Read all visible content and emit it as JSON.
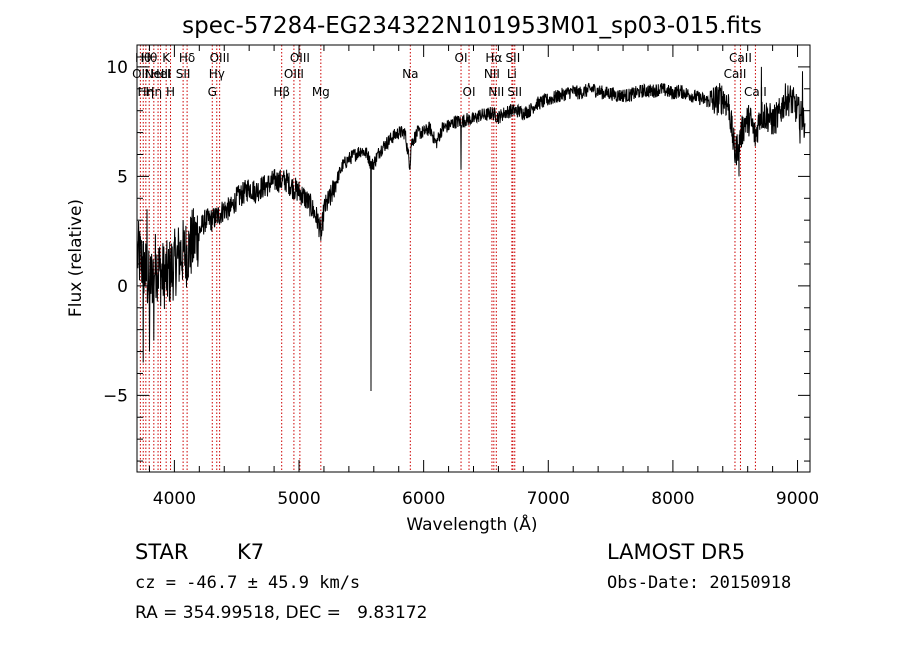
{
  "chart_data": {
    "type": "line",
    "title": "spec-57284-EG234322N101953M01_sp03-015.fits",
    "xlabel": "Wavelength (Å)",
    "ylabel": "Flux (relative)",
    "xlim": [
      3700,
      9100
    ],
    "ylim": [
      -8.5,
      11.0
    ],
    "xticks": [
      4000,
      5000,
      6000,
      7000,
      8000,
      9000
    ],
    "yticks": [
      -5,
      0,
      5,
      10
    ],
    "line_color": "#000000",
    "reference_line_color": "#cc0000",
    "series": [
      {
        "x": [
          3700,
          3750,
          3800,
          3850,
          3900,
          3950,
          4000,
          4050,
          4100,
          4150,
          4200,
          4250,
          4300,
          4350,
          4400,
          4450,
          4500,
          4550,
          4600,
          4650,
          4700,
          4750,
          4800,
          4850,
          4900,
          4950,
          5000,
          5050,
          5100,
          5150,
          5180,
          5200,
          5250,
          5300,
          5350,
          5400,
          5450,
          5500,
          5550,
          5580,
          5600,
          5650,
          5700,
          5750,
          5800,
          5850,
          5890,
          5900,
          5950,
          6000,
          6050,
          6100,
          6150,
          6200,
          6250,
          6300,
          6350,
          6400,
          6450,
          6500,
          6550,
          6600,
          6650,
          6700,
          6750,
          6800,
          6850,
          6900,
          6950,
          7000,
          7050,
          7100,
          7150,
          7200,
          7250,
          7300,
          7350,
          7400,
          7450,
          7500,
          7550,
          7600,
          7650,
          7700,
          7750,
          7800,
          7850,
          7900,
          7950,
          8000,
          8050,
          8100,
          8150,
          8200,
          8250,
          8300,
          8350,
          8400,
          8450,
          8498,
          8542,
          8580,
          8620,
          8662,
          8700,
          8750,
          8800,
          8850,
          8900,
          8950,
          9000,
          9050
        ],
        "y": [
          1.5,
          1.0,
          0.0,
          1.0,
          0.5,
          0.5,
          1.0,
          1.5,
          1.5,
          2.0,
          2.5,
          3.0,
          3.0,
          3.2,
          3.5,
          3.5,
          4.0,
          4.2,
          4.5,
          4.3,
          4.5,
          4.6,
          4.8,
          4.8,
          4.8,
          4.5,
          4.3,
          4.0,
          3.6,
          3.0,
          2.3,
          3.5,
          4.0,
          4.8,
          5.5,
          5.8,
          6.0,
          6.2,
          6.0,
          5.5,
          5.6,
          6.2,
          6.5,
          6.8,
          7.0,
          7.0,
          5.5,
          6.5,
          7.0,
          7.0,
          7.2,
          6.5,
          7.2,
          7.3,
          7.5,
          7.5,
          7.6,
          7.6,
          7.8,
          7.8,
          7.9,
          7.7,
          7.9,
          8.0,
          8.0,
          7.9,
          8.0,
          8.3,
          8.4,
          8.5,
          8.6,
          8.7,
          8.8,
          8.9,
          8.8,
          8.9,
          9.0,
          8.9,
          8.8,
          8.8,
          8.7,
          8.7,
          8.7,
          8.8,
          8.9,
          8.9,
          8.9,
          9.0,
          8.9,
          8.8,
          8.9,
          8.8,
          8.7,
          8.6,
          8.5,
          8.4,
          8.5,
          8.6,
          8.2,
          6.0,
          6.8,
          7.5,
          7.6,
          6.8,
          7.8,
          7.8,
          7.5,
          7.8,
          8.5,
          8.5,
          8.0,
          7.5
        ],
        "spikes": [
          {
            "x": 3750,
            "y": -3.5
          },
          {
            "x": 3780,
            "y": 3.5
          },
          {
            "x": 3800,
            "y": -3.0
          },
          {
            "x": 3835,
            "y": -2.5
          },
          {
            "x": 5577,
            "y": -4.8
          },
          {
            "x": 6300,
            "y": 5.3
          },
          {
            "x": 8530,
            "y": 5.0
          },
          {
            "x": 8710,
            "y": 10.0
          },
          {
            "x": 9020,
            "y": 6.5
          },
          {
            "x": 9040,
            "y": 9.8
          }
        ]
      }
    ],
    "reference_lines": [
      {
        "x": 3727,
        "label": "OII",
        "row": 2
      },
      {
        "x": 3750,
        "label": "Hθ",
        "row": 1
      },
      {
        "x": 3771,
        "label": "Hη",
        "row": 3
      },
      {
        "x": 3798,
        "label": "Hθ",
        "row": 1
      },
      {
        "x": 3835,
        "label": "Hη",
        "row": 3
      },
      {
        "x": 3869,
        "label": "NeIII",
        "row": 2
      },
      {
        "x": 3889,
        "label": "HeI",
        "row": 2
      },
      {
        "x": 3934,
        "label": "K",
        "row": 1
      },
      {
        "x": 3969,
        "label": "H",
        "row": 3
      },
      {
        "x": 4070,
        "label": "SII",
        "row": 2
      },
      {
        "x": 4102,
        "label": "Hδ",
        "row": 1
      },
      {
        "x": 4304,
        "label": "G",
        "row": 3
      },
      {
        "x": 4340,
        "label": "Hγ",
        "row": 2
      },
      {
        "x": 4363,
        "label": "OIII",
        "row": 1
      },
      {
        "x": 4861,
        "label": "Hβ",
        "row": 3
      },
      {
        "x": 4959,
        "label": "OIII",
        "row": 2
      },
      {
        "x": 5007,
        "label": "OIII",
        "row": 1
      },
      {
        "x": 5175,
        "label": "Mg",
        "row": 3
      },
      {
        "x": 5893,
        "label": "Na",
        "row": 2
      },
      {
        "x": 6300,
        "label": "OI",
        "row": 1
      },
      {
        "x": 6364,
        "label": "OI",
        "row": 3
      },
      {
        "x": 6548,
        "label": "NII",
        "row": 2
      },
      {
        "x": 6563,
        "label": "Hα",
        "row": 1
      },
      {
        "x": 6583,
        "label": "NII",
        "row": 3
      },
      {
        "x": 6708,
        "label": "Li",
        "row": 2
      },
      {
        "x": 6716,
        "label": "SII",
        "row": 1
      },
      {
        "x": 6731,
        "label": "SII",
        "row": 3
      },
      {
        "x": 8498,
        "label": "CaII",
        "row": 2
      },
      {
        "x": 8542,
        "label": "CaII",
        "row": 1
      },
      {
        "x": 8662,
        "label": "CaII",
        "row": 3
      }
    ]
  },
  "info": {
    "object_class": "STAR",
    "subclass": "K7",
    "survey": "LAMOST DR5",
    "cz": "cz = -46.7 ± 45.9 km/s",
    "obs_date": "Obs-Date: 20150918",
    "coords": "RA = 354.99518, DEC =   9.83172"
  }
}
